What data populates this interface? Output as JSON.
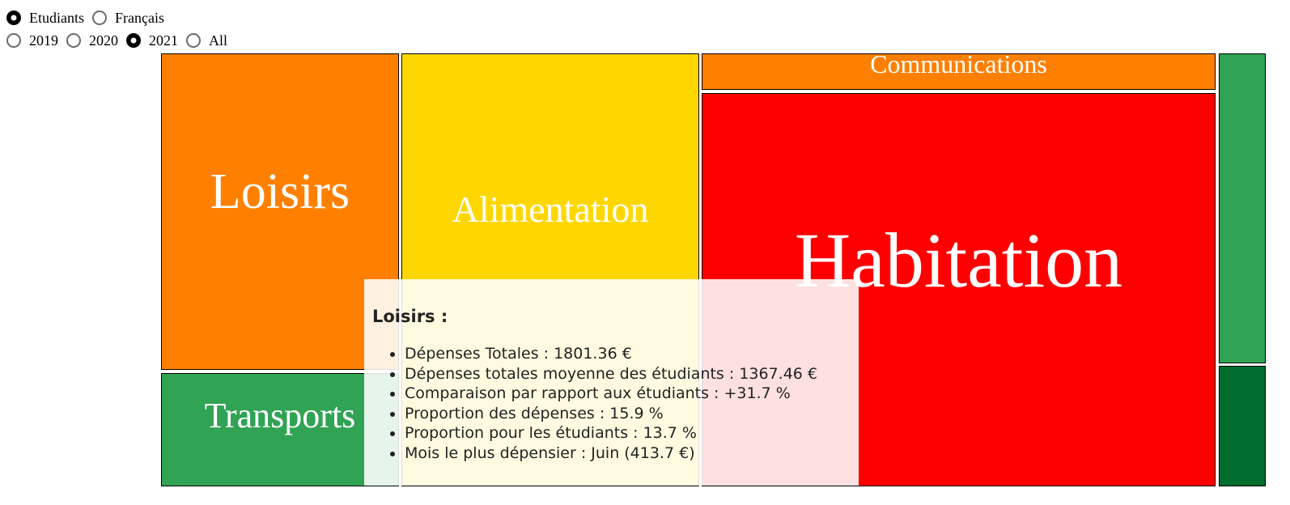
{
  "population": {
    "options": [
      {
        "label": "Etudiants",
        "checked": true
      },
      {
        "label": "Français",
        "checked": false
      }
    ]
  },
  "year": {
    "options": [
      {
        "label": "2019",
        "checked": false
      },
      {
        "label": "2020",
        "checked": false
      },
      {
        "label": "2021",
        "checked": true
      },
      {
        "label": "All",
        "checked": false
      }
    ]
  },
  "treemap": {
    "tiles": {
      "loisirs": {
        "label": "Loisirs",
        "color": "#FF8000"
      },
      "alimentation": {
        "label": "Alimentation",
        "color": "#FFD700"
      },
      "communications": {
        "label": "Communications",
        "color": "#FF8000"
      },
      "habitation": {
        "label": "Habitation",
        "color": "#FF0000"
      },
      "transports": {
        "label": "Transports",
        "color": "#31A354"
      },
      "green_1": {
        "label": "",
        "color": "#31A354"
      },
      "green_2": {
        "label": "",
        "color": "#006D2C"
      }
    }
  },
  "tooltip": {
    "title": "Loisirs :",
    "items": [
      "Dépenses Totales : 1801.36 €",
      "Dépenses totales moyenne des étudiants : 1367.46 €",
      "Comparaison par rapport aux étudiants : +31.7 %",
      "Proportion des dépenses : 15.9 %",
      "Proportion pour les étudiants : 13.7 %",
      "Mois le plus dépensier : Juin (413.7 €)"
    ]
  }
}
